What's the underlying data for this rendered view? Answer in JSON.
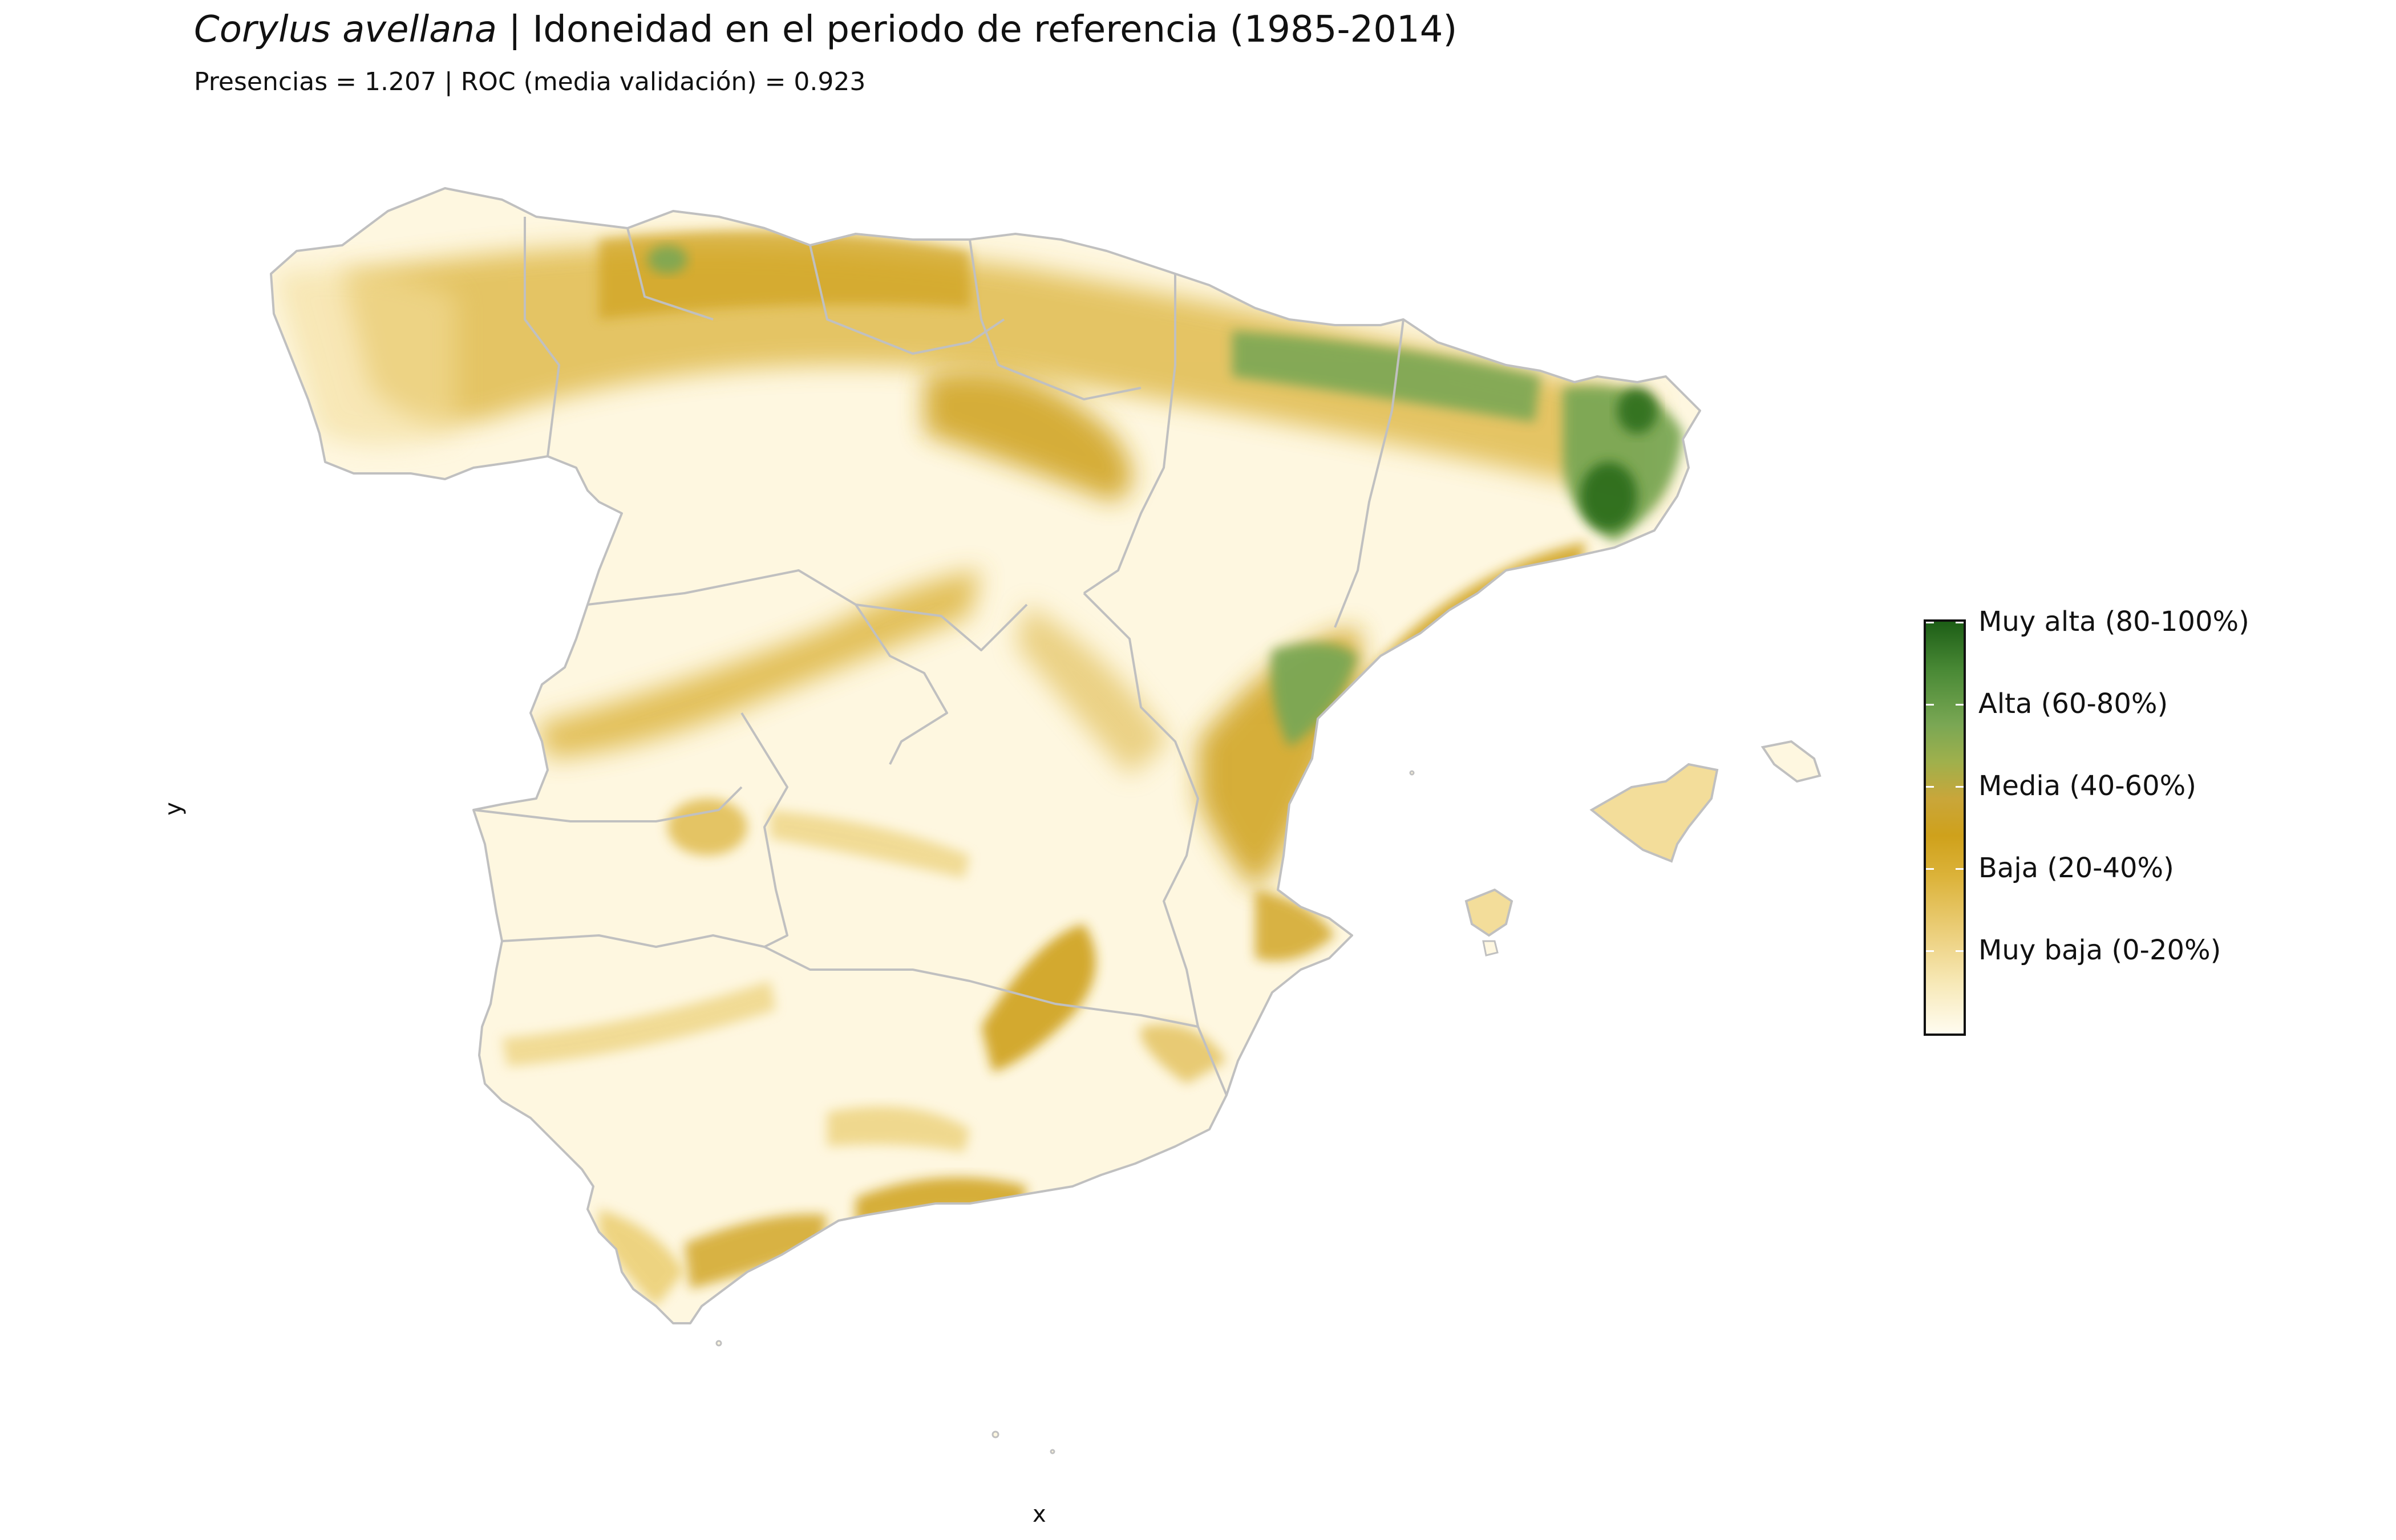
{
  "title": {
    "species": "Corylus avellana",
    "rest": " | Idoneidad en el periodo de referencia (1985-2014)"
  },
  "subtitle": "Presencias = 1.207  |  ROC (media validación) = 0.923",
  "axes": {
    "x": "x",
    "y": "y"
  },
  "legend": {
    "items": [
      {
        "label": "Muy alta (80-100%)",
        "color": "#1d5e16"
      },
      {
        "label": "Alta (60-80%)",
        "color": "#7aa754"
      },
      {
        "label": "Media (40-60%)",
        "color": "#c9a63a"
      },
      {
        "label": "Baja (20-40%)",
        "color": "#d8ae2a"
      },
      {
        "label": "Muy baja (0-20%)",
        "color": "#f7e9b8"
      }
    ],
    "range_low_color": "#fffcf0"
  },
  "colors": {
    "land_base": "#fef7e0",
    "border": "#c0c0c0"
  }
}
